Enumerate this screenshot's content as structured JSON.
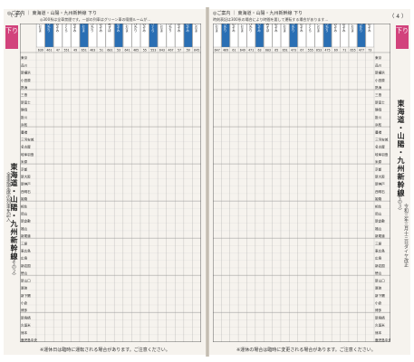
{
  "left": {
    "page_number": "（ 3 ）",
    "header": "◎ご案内 ｜ 東海道・山陽・九州新幹線 下り",
    "notes": "◎300系は全車禁煙です。一部の列車はグリーン車の喫煙ルームが…",
    "direction": "下り",
    "line_title": "東海道・山陽・九州新幹線",
    "subtitle": "（その２）",
    "side_note": "全車指定席の列車を記入",
    "footer": "※運休日は臨時に運転される場合があります。ご注意ください。",
    "columns": [
      "こだま",
      "ひかり",
      "のぞみ",
      "さくら",
      "のぞみ",
      "こだま",
      "ひかり",
      "のぞみ",
      "みずほ",
      "のぞみ",
      "こだま",
      "ひかり",
      "のぞみ",
      "さくら",
      "こだま",
      "ひかり",
      "のぞみ",
      "のぞみ",
      "こだま"
    ],
    "train_numbers": [
      "639",
      "461",
      "47",
      "551",
      "49",
      "651",
      "463",
      "51",
      "601",
      "53",
      "641",
      "465",
      "55",
      "553",
      "643",
      "467",
      "57",
      "59",
      "645"
    ],
    "stations": [
      "東京",
      "品川",
      "新横浜",
      "小田原",
      "熱海",
      "三島",
      "新富士",
      "静岡",
      "掛川",
      "浜松",
      "豊橋",
      "三河安城",
      "名古屋",
      "岐阜羽島",
      "米原",
      "京都",
      "新大阪",
      "新神戸",
      "西明石",
      "姫路",
      "相生",
      "岡山",
      "新倉敷",
      "福山",
      "新尾道",
      "三原",
      "東広島",
      "広島",
      "新岩国",
      "徳山",
      "新山口",
      "厚狭",
      "新下関",
      "小倉",
      "博多",
      "新鳥栖",
      "久留米",
      "熊本",
      "鹿児島中央"
    ]
  },
  "right": {
    "page_number": "（ 4 ）",
    "header": "◎ご案内 ｜ 東海道・山陽・九州新幹線 下り",
    "notes": "時刻表記は300系の場合により時間を要して運転する場合があります…",
    "direction": "下り",
    "line_title": "東海道・山陽・九州新幹線",
    "subtitle": "（その３）",
    "side_note": "令和三年三月十三日ダイヤ改正",
    "footer": "※運休の場合は臨時に変更される場合があります。ご注意ください。",
    "columns": [
      "こだま",
      "ひかり",
      "のぞみ",
      "こだま",
      "ひかり",
      "のぞみ",
      "みずほ",
      "のぞみ",
      "こだま",
      "ひかり",
      "のぞみ",
      "さくら",
      "こだま",
      "ひかり",
      "のぞみ",
      "のぞみ",
      "こだま",
      "ひかり",
      "のぞみ"
    ],
    "train_numbers": [
      "647",
      "469",
      "61",
      "649",
      "471",
      "63",
      "603",
      "65",
      "651",
      "473",
      "67",
      "555",
      "653",
      "475",
      "69",
      "71",
      "655",
      "477",
      "73"
    ],
    "stations": [
      "東京",
      "品川",
      "新横浜",
      "小田原",
      "熱海",
      "三島",
      "新富士",
      "静岡",
      "掛川",
      "浜松",
      "豊橋",
      "三河安城",
      "名古屋",
      "岐阜羽島",
      "米原",
      "京都",
      "新大阪",
      "新神戸",
      "西明石",
      "姫路",
      "相生",
      "岡山",
      "新倉敷",
      "福山",
      "新尾道",
      "三原",
      "東広島",
      "広島",
      "新岩国",
      "徳山",
      "新山口",
      "厚狭",
      "新下関",
      "小倉",
      "博多",
      "新鳥栖",
      "久留米",
      "熊本",
      "鹿児島中央"
    ]
  },
  "colors": {
    "accent": "#d2437c",
    "header_blue": "#2a6fb4",
    "ink": "#222222",
    "paper": "#f6f3ee"
  }
}
